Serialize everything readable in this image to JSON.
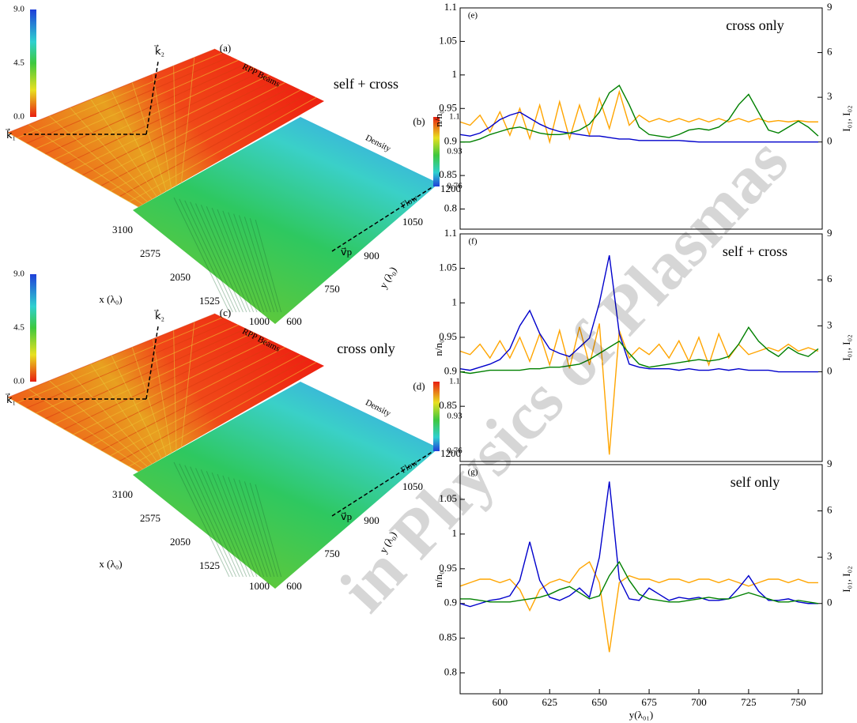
{
  "surfaces": [
    {
      "beam_label": "(a)",
      "beam_text": "RPP Beams",
      "density_label": "(b)",
      "density_text": "Density",
      "flow": "Flow",
      "title": "self + cross",
      "k1": "k⃗₁",
      "k2": "k⃗₂",
      "vp": "v⃗p",
      "beam_colorbar_ticks": [
        "9.0",
        "4.5",
        "0.0"
      ],
      "density_colorbar_ticks": [
        "1.1",
        "0.93",
        "0.76"
      ],
      "x_ticks": [
        "3100",
        "2575",
        "2050",
        "1525",
        "1000"
      ],
      "y_ticks": [
        "600",
        "750",
        "900",
        "1050",
        "1200"
      ],
      "x_label": "x (λ₀)",
      "y_label": "y (λ₀)"
    },
    {
      "beam_label": "(c)",
      "beam_text": "RPP Beams",
      "density_label": "(d)",
      "density_text": "Density",
      "flow": "Flow",
      "title": "cross only",
      "k1": "k⃗₁",
      "k2": "k⃗₂",
      "vp": "v⃗p",
      "beam_colorbar_ticks": [
        "9.0",
        "4.5",
        "0.0"
      ],
      "density_colorbar_ticks": [
        "1.1",
        "0.93",
        "0.76"
      ],
      "x_ticks": [
        "3100",
        "2575",
        "2050",
        "1525",
        "1000"
      ],
      "y_ticks": [
        "600",
        "750",
        "900",
        "1050",
        "1200"
      ],
      "x_label": "x (λ₀)",
      "y_label": "y (λ₀)"
    }
  ],
  "watermark": "in Physics of Plasmas",
  "chart_data": [
    {
      "type": "line",
      "label": "(e)",
      "title": "cross only",
      "ylabel": "n/n₀",
      "y2label": "I₀₁, I₀₂",
      "x": [
        580,
        585,
        590,
        595,
        600,
        605,
        610,
        615,
        620,
        625,
        630,
        635,
        640,
        645,
        650,
        655,
        660,
        665,
        670,
        675,
        680,
        685,
        690,
        695,
        700,
        705,
        710,
        715,
        720,
        725,
        730,
        735,
        740,
        745,
        750,
        755,
        760
      ],
      "xlim": [
        580,
        762
      ],
      "ylim": [
        0.77,
        1.1
      ],
      "yticks": [
        0.8,
        0.85,
        0.9,
        0.95,
        1,
        1.05,
        1.1
      ],
      "y2lim": [
        -5.85,
        9
      ],
      "y2ticks": [
        0,
        3,
        6,
        9
      ],
      "series": [
        {
          "color": "#ffa500",
          "values": [
            0.93,
            0.925,
            0.94,
            0.915,
            0.945,
            0.91,
            0.95,
            0.905,
            0.955,
            0.9,
            0.96,
            0.905,
            0.955,
            0.91,
            0.965,
            0.92,
            0.975,
            0.925,
            0.94,
            0.93,
            0.935,
            0.93,
            0.935,
            0.93,
            0.935,
            0.93,
            0.935,
            0.93,
            0.935,
            0.93,
            0.935,
            0.93,
            0.932,
            0.93,
            0.932,
            0.93,
            0.93
          ]
        },
        {
          "color": "#0000cc",
          "axis": "y2",
          "values": [
            0.5,
            0.4,
            0.6,
            1.0,
            1.5,
            1.8,
            2.0,
            1.6,
            1.2,
            0.9,
            0.7,
            0.6,
            0.5,
            0.4,
            0.4,
            0.3,
            0.2,
            0.2,
            0.1,
            0.1,
            0.1,
            0.1,
            0.1,
            0.05,
            0,
            0,
            0,
            0,
            0,
            0,
            0,
            0,
            0,
            0,
            0,
            0,
            0
          ]
        },
        {
          "color": "#008000",
          "axis": "y2",
          "values": [
            0,
            0,
            0.2,
            0.5,
            0.7,
            0.9,
            1.0,
            0.8,
            0.6,
            0.5,
            0.5,
            0.6,
            0.8,
            1.2,
            2.0,
            3.3,
            3.8,
            2.5,
            1.0,
            0.5,
            0.4,
            0.3,
            0.5,
            0.8,
            0.9,
            0.8,
            1.0,
            1.5,
            2.5,
            3.2,
            2.0,
            0.8,
            0.6,
            1.0,
            1.4,
            1.0,
            0.4
          ]
        }
      ]
    },
    {
      "type": "line",
      "label": "(f)",
      "title": "self + cross",
      "ylabel": "n/n₀",
      "y2label": "I₀₁, I₀₂",
      "x": [
        580,
        585,
        590,
        595,
        600,
        605,
        610,
        615,
        620,
        625,
        630,
        635,
        640,
        645,
        650,
        655,
        660,
        665,
        670,
        675,
        680,
        685,
        690,
        695,
        700,
        705,
        710,
        715,
        720,
        725,
        730,
        735,
        740,
        745,
        750,
        755,
        760
      ],
      "xlim": [
        580,
        762
      ],
      "ylim": [
        0.77,
        1.1
      ],
      "yticks": [
        0.85,
        0.9,
        0.95,
        1,
        1.05,
        1.1
      ],
      "y2lim": [
        -5.85,
        9
      ],
      "y2ticks": [
        0,
        3,
        6,
        9
      ],
      "series": [
        {
          "color": "#ffa500",
          "values": [
            0.93,
            0.925,
            0.94,
            0.92,
            0.945,
            0.92,
            0.95,
            0.915,
            0.955,
            0.91,
            0.96,
            0.905,
            0.965,
            0.91,
            0.97,
            0.78,
            0.96,
            0.92,
            0.935,
            0.925,
            0.94,
            0.92,
            0.945,
            0.915,
            0.95,
            0.91,
            0.955,
            0.92,
            0.94,
            0.925,
            0.93,
            0.935,
            0.93,
            0.94,
            0.93,
            0.935,
            0.93
          ]
        },
        {
          "color": "#0000cc",
          "axis": "y2",
          "values": [
            0.2,
            0.1,
            0.3,
            0.5,
            0.8,
            1.5,
            3.0,
            4.0,
            2.5,
            1.5,
            1.2,
            1.0,
            1.6,
            2.2,
            4.5,
            7.6,
            2.5,
            0.5,
            0.3,
            0.2,
            0.2,
            0.2,
            0.1,
            0.2,
            0.1,
            0.1,
            0.2,
            0.1,
            0.2,
            0.1,
            0.1,
            0.1,
            0,
            0,
            0,
            0,
            0
          ]
        },
        {
          "color": "#008000",
          "axis": "y2",
          "values": [
            0,
            -0.1,
            0,
            0.1,
            0.1,
            0.1,
            0.1,
            0.2,
            0.2,
            0.3,
            0.3,
            0.4,
            0.5,
            0.8,
            1.2,
            1.6,
            2.0,
            1.2,
            0.5,
            0.3,
            0.4,
            0.5,
            0.6,
            0.7,
            0.8,
            0.7,
            0.8,
            1.0,
            1.8,
            2.9,
            2.0,
            1.4,
            1.0,
            1.6,
            1.2,
            1.0,
            1.5
          ]
        }
      ]
    },
    {
      "type": "line",
      "label": "(g)",
      "title": "self only",
      "ylabel": "n/n₀",
      "y2label": "I₀₁, I₀₂",
      "xlabel": "y(λ₀₁)",
      "x": [
        580,
        585,
        590,
        595,
        600,
        605,
        610,
        615,
        620,
        625,
        630,
        635,
        640,
        645,
        650,
        655,
        660,
        665,
        670,
        675,
        680,
        685,
        690,
        695,
        700,
        705,
        710,
        715,
        720,
        725,
        730,
        735,
        740,
        745,
        750,
        755,
        760
      ],
      "xlim": [
        580,
        762
      ],
      "xticks": [
        600,
        625,
        650,
        675,
        700,
        725,
        750
      ],
      "ylim": [
        0.77,
        1.1
      ],
      "yticks": [
        0.8,
        0.85,
        0.9,
        0.95,
        1,
        1.05
      ],
      "y2lim": [
        -5.85,
        9
      ],
      "y2ticks": [
        0,
        3,
        6,
        9
      ],
      "series": [
        {
          "color": "#ffa500",
          "values": [
            0.925,
            0.93,
            0.935,
            0.935,
            0.93,
            0.935,
            0.92,
            0.89,
            0.92,
            0.93,
            0.935,
            0.93,
            0.95,
            0.96,
            0.93,
            0.83,
            0.93,
            0.94,
            0.935,
            0.935,
            0.93,
            0.935,
            0.935,
            0.93,
            0.935,
            0.935,
            0.93,
            0.935,
            0.93,
            0.925,
            0.93,
            0.935,
            0.935,
            0.93,
            0.935,
            0.93,
            0.93
          ]
        },
        {
          "color": "#0000cc",
          "axis": "y2",
          "values": [
            0,
            -0.2,
            0,
            0.2,
            0.3,
            0.5,
            1.5,
            4.0,
            1.5,
            0.4,
            0.2,
            0.5,
            1.0,
            0.4,
            3.0,
            7.9,
            1.6,
            0.3,
            0.2,
            1.0,
            0.6,
            0.2,
            0.4,
            0.3,
            0.4,
            0.2,
            0.2,
            0.3,
            1.0,
            1.8,
            0.8,
            0.2,
            0.2,
            0.3,
            0.1,
            0,
            0
          ]
        },
        {
          "color": "#008000",
          "axis": "y2",
          "values": [
            0.3,
            0.3,
            0.2,
            0.1,
            0.1,
            0.1,
            0.2,
            0.3,
            0.4,
            0.6,
            0.9,
            1.1,
            0.7,
            0.3,
            0.5,
            1.8,
            2.7,
            1.5,
            0.6,
            0.3,
            0.2,
            0.1,
            0.1,
            0.2,
            0.3,
            0.4,
            0.3,
            0.3,
            0.5,
            0.7,
            0.5,
            0.3,
            0.1,
            0.1,
            0.2,
            0.1,
            0
          ]
        }
      ]
    }
  ]
}
